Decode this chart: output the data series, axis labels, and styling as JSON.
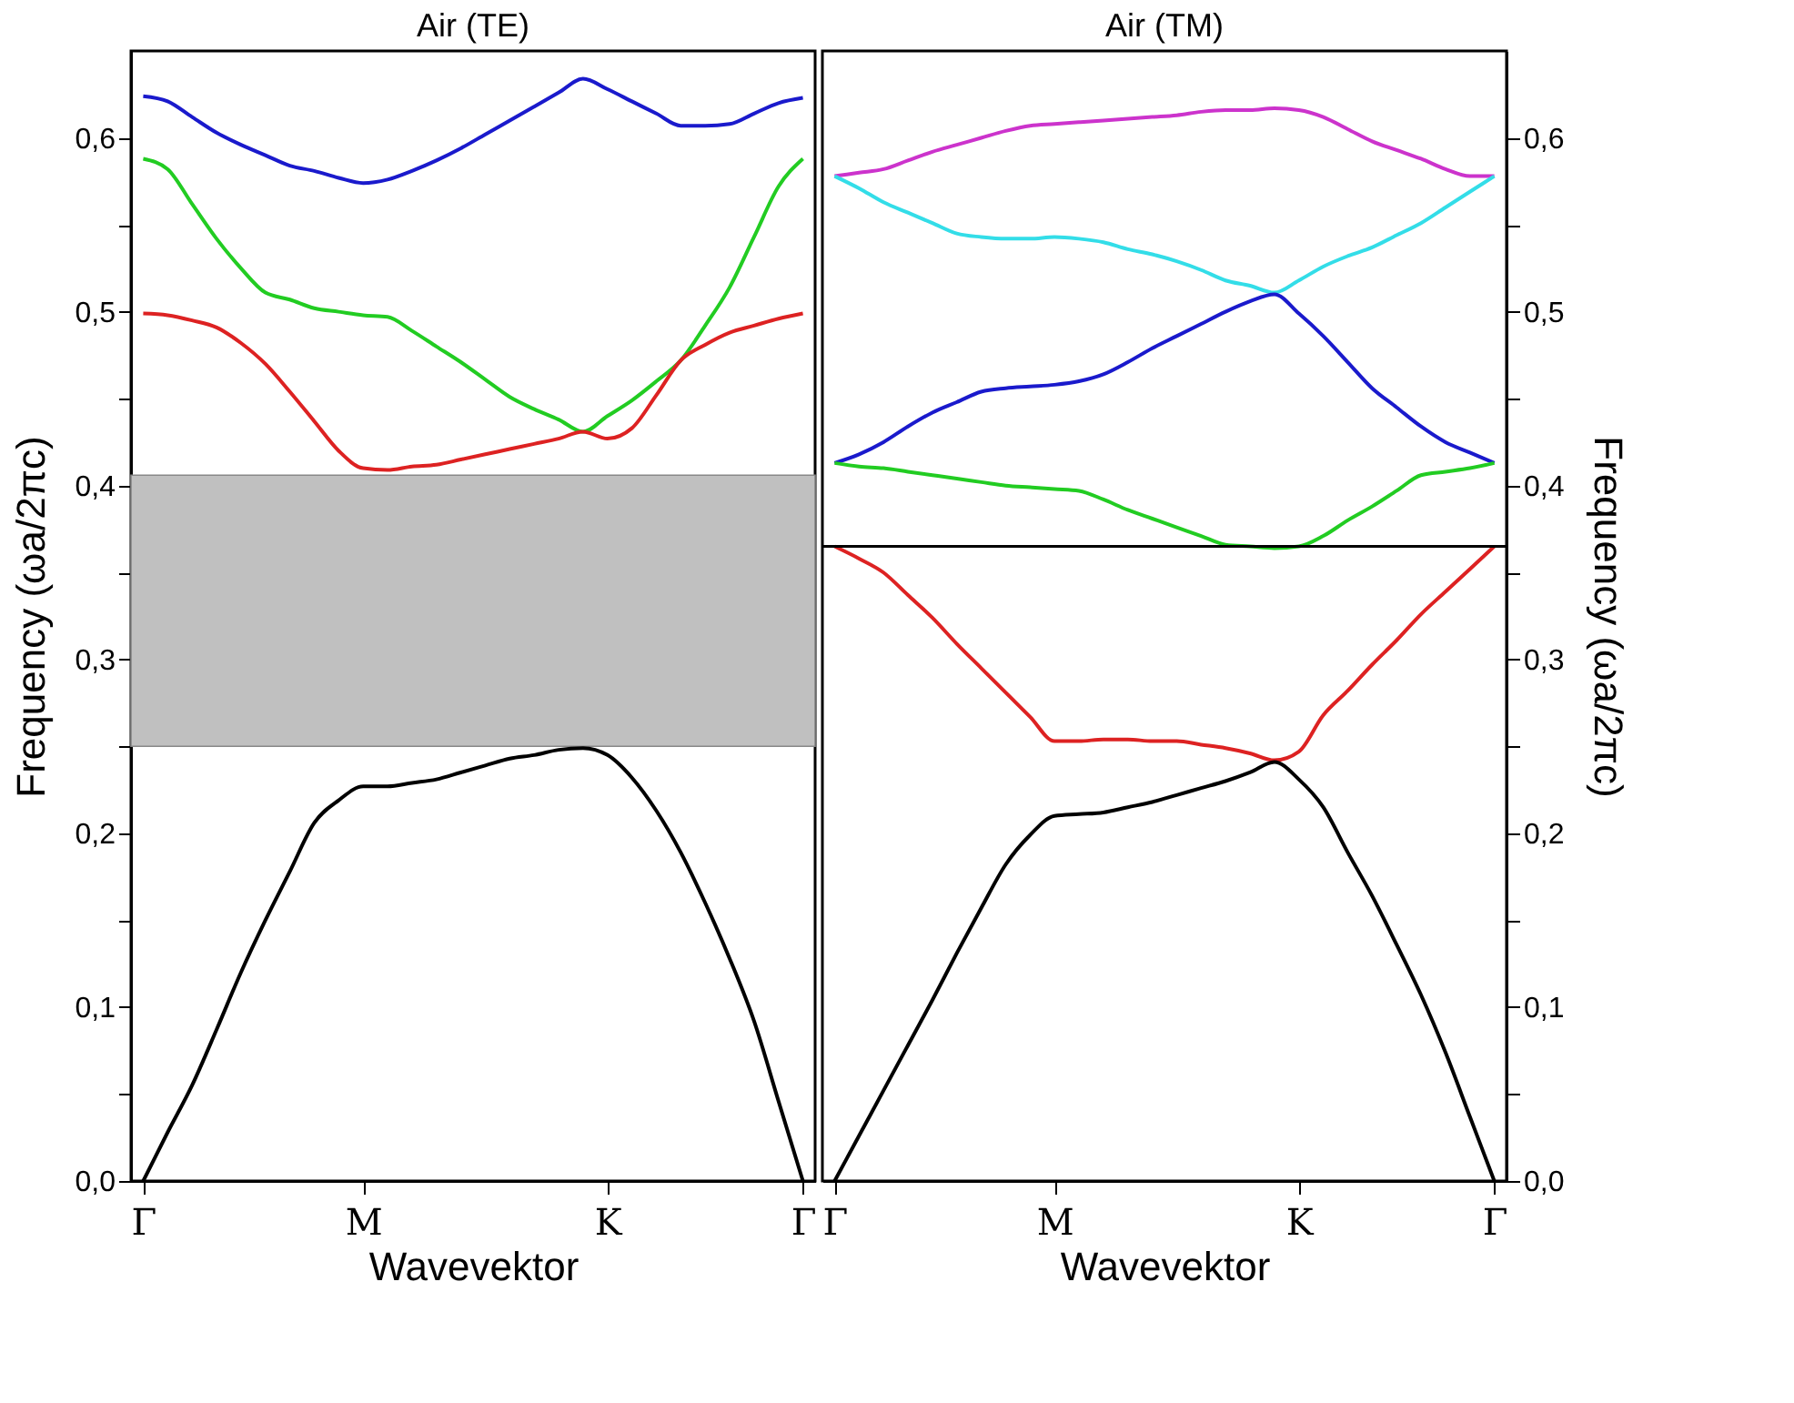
{
  "chart_data": [
    {
      "type": "line",
      "title": "Air (TE)",
      "xlabel": "Wavevektor",
      "ylabel": "Frequency (ωa/2πc)",
      "grid": false,
      "categories": [
        "Γ",
        null,
        null,
        null,
        null,
        null,
        null,
        null,
        null,
        "M",
        null,
        null,
        null,
        null,
        null,
        null,
        null,
        null,
        null,
        "K",
        null,
        null,
        null,
        null,
        null,
        null,
        null,
        "Γ"
      ],
      "ylim": [
        0,
        0.65
      ],
      "yticks": [
        {
          "value": 0,
          "label": "0,0"
        },
        {
          "value": 0.05,
          "label": null
        },
        {
          "value": 0.1,
          "label": "0,1"
        },
        {
          "value": 0.15,
          "label": null
        },
        {
          "value": 0.2,
          "label": "0,2"
        },
        {
          "value": 0.25,
          "label": null
        },
        {
          "value": 0.3,
          "label": "0,3"
        },
        {
          "value": 0.35,
          "label": null
        },
        {
          "value": 0.4,
          "label": "0,4"
        },
        {
          "value": 0.45,
          "label": null
        },
        {
          "value": 0.5,
          "label": "0,5"
        },
        {
          "value": 0.55,
          "label": null
        },
        {
          "value": 0.6,
          "label": "0,6"
        }
      ],
      "bands": [
        {
          "axis": "y",
          "from": 0.25,
          "to": 0.406,
          "label": null,
          "color": "#c0c0c0"
        }
      ],
      "series": [
        {
          "color": "#1a1acc",
          "values": [
            0.624,
            0.621,
            0.612,
            0.603,
            0.596,
            0.59,
            0.584,
            0.581,
            0.577,
            0.574,
            0.576,
            0.581,
            0.587,
            0.594,
            0.602,
            0.61,
            0.618,
            0.626,
            0.634,
            0.628,
            0.621,
            0.614,
            0.607,
            0.607,
            0.608,
            0.614,
            0.62,
            0.623
          ]
        },
        {
          "color": "#22cc22",
          "values": [
            0.588,
            0.582,
            0.562,
            0.542,
            0.525,
            0.511,
            0.507,
            0.502,
            0.5,
            0.498,
            0.497,
            0.489,
            0.48,
            0.471,
            0.461,
            0.451,
            0.444,
            0.438,
            0.431,
            0.44,
            0.449,
            0.46,
            0.472,
            0.492,
            0.514,
            0.543,
            0.572,
            0.588
          ]
        },
        {
          "color": "#dd2222",
          "values": [
            0.499,
            0.498,
            0.495,
            0.491,
            0.482,
            0.47,
            0.454,
            0.437,
            0.42,
            0.41,
            0.409,
            0.411,
            0.412,
            0.415,
            0.418,
            0.421,
            0.424,
            0.427,
            0.431,
            0.427,
            0.433,
            0.452,
            0.472,
            0.481,
            0.488,
            0.492,
            0.496,
            0.499
          ]
        },
        {
          "color": "#000000",
          "values": [
            0,
            0.028,
            0.055,
            0.087,
            0.12,
            0.15,
            0.178,
            0.206,
            0.219,
            0.227,
            0.227,
            0.229,
            0.231,
            0.235,
            0.239,
            0.243,
            0.245,
            0.248,
            0.249,
            0.245,
            0.232,
            0.213,
            0.189,
            0.16,
            0.128,
            0.092,
            0.046,
            0
          ]
        }
      ]
    },
    {
      "type": "line",
      "title": "Air (TM)",
      "xlabel": "Wavevektor",
      "y2label": "Frequency (ωa/2πc)",
      "grid": false,
      "categories": [
        "Γ",
        null,
        null,
        null,
        null,
        null,
        null,
        null,
        null,
        "M",
        null,
        null,
        null,
        null,
        null,
        null,
        null,
        null,
        null,
        "K",
        null,
        null,
        null,
        null,
        null,
        null,
        null,
        "Γ"
      ],
      "y2lim": [
        0,
        0.65
      ],
      "y2ticks": [
        {
          "value": 0,
          "label": "0,0"
        },
        {
          "value": 0.05,
          "label": null
        },
        {
          "value": 0.1,
          "label": "0,1"
        },
        {
          "value": 0.15,
          "label": null
        },
        {
          "value": 0.2,
          "label": "0,2"
        },
        {
          "value": 0.25,
          "label": null
        },
        {
          "value": 0.3,
          "label": "0,3"
        },
        {
          "value": 0.35,
          "label": null
        },
        {
          "value": 0.4,
          "label": "0,4"
        },
        {
          "value": 0.45,
          "label": null
        },
        {
          "value": 0.5,
          "label": "0,5"
        },
        {
          "value": 0.55,
          "label": null
        },
        {
          "value": 0.6,
          "label": "0,6"
        }
      ],
      "ref_lines": [
        {
          "axis": "y2",
          "value": 0.365,
          "label": null,
          "color": "#000000"
        }
      ],
      "series": [
        {
          "axis": "y2",
          "color": "#cc33cc",
          "values": [
            0.578,
            0.58,
            0.582,
            0.587,
            0.592,
            0.596,
            0.6,
            0.604,
            0.607,
            0.608,
            0.609,
            0.61,
            0.611,
            0.612,
            0.613,
            0.615,
            0.616,
            0.616,
            0.617,
            0.616,
            0.612,
            0.605,
            0.598,
            0.593,
            0.588,
            0.582,
            0.578,
            0.578
          ]
        },
        {
          "axis": "y2",
          "color": "#33dde8",
          "values": [
            0.578,
            0.571,
            0.563,
            0.557,
            0.551,
            0.545,
            0.543,
            0.542,
            0.542,
            0.543,
            0.542,
            0.54,
            0.536,
            0.533,
            0.529,
            0.524,
            0.518,
            0.515,
            0.511,
            0.518,
            0.526,
            0.532,
            0.537,
            0.544,
            0.551,
            0.56,
            0.569,
            0.578
          ]
        },
        {
          "axis": "y2",
          "color": "#1a1acc",
          "values": [
            0.413,
            0.418,
            0.425,
            0.434,
            0.442,
            0.448,
            0.454,
            0.456,
            0.457,
            0.458,
            0.46,
            0.464,
            0.471,
            0.479,
            0.486,
            0.493,
            0.5,
            0.506,
            0.51,
            0.499,
            0.486,
            0.471,
            0.456,
            0.445,
            0.434,
            0.425,
            0.419,
            0.413
          ]
        },
        {
          "axis": "y2",
          "color": "#22cc22",
          "values": [
            0.413,
            0.411,
            0.41,
            0.408,
            0.406,
            0.404,
            0.402,
            0.4,
            0.399,
            0.398,
            0.397,
            0.392,
            0.386,
            0.381,
            0.376,
            0.371,
            0.366,
            0.365,
            0.364,
            0.365,
            0.371,
            0.38,
            0.388,
            0.397,
            0.406,
            0.408,
            0.41,
            0.413
          ]
        },
        {
          "axis": "y2",
          "color": "#dd2222",
          "values": [
            0.365,
            0.358,
            0.35,
            0.337,
            0.324,
            0.309,
            0.295,
            0.281,
            0.267,
            0.253,
            0.253,
            0.254,
            0.254,
            0.253,
            0.253,
            0.251,
            0.249,
            0.246,
            0.242,
            0.247,
            0.268,
            0.282,
            0.297,
            0.311,
            0.326,
            0.339,
            0.352,
            0.365
          ]
        },
        {
          "axis": "y2",
          "color": "#000000",
          "values": [
            0,
            0.026,
            0.052,
            0.078,
            0.104,
            0.131,
            0.157,
            0.182,
            0.199,
            0.21,
            0.211,
            0.212,
            0.215,
            0.218,
            0.222,
            0.226,
            0.23,
            0.235,
            0.241,
            0.231,
            0.215,
            0.189,
            0.164,
            0.136,
            0.107,
            0.074,
            0.037,
            0
          ]
        }
      ]
    }
  ]
}
